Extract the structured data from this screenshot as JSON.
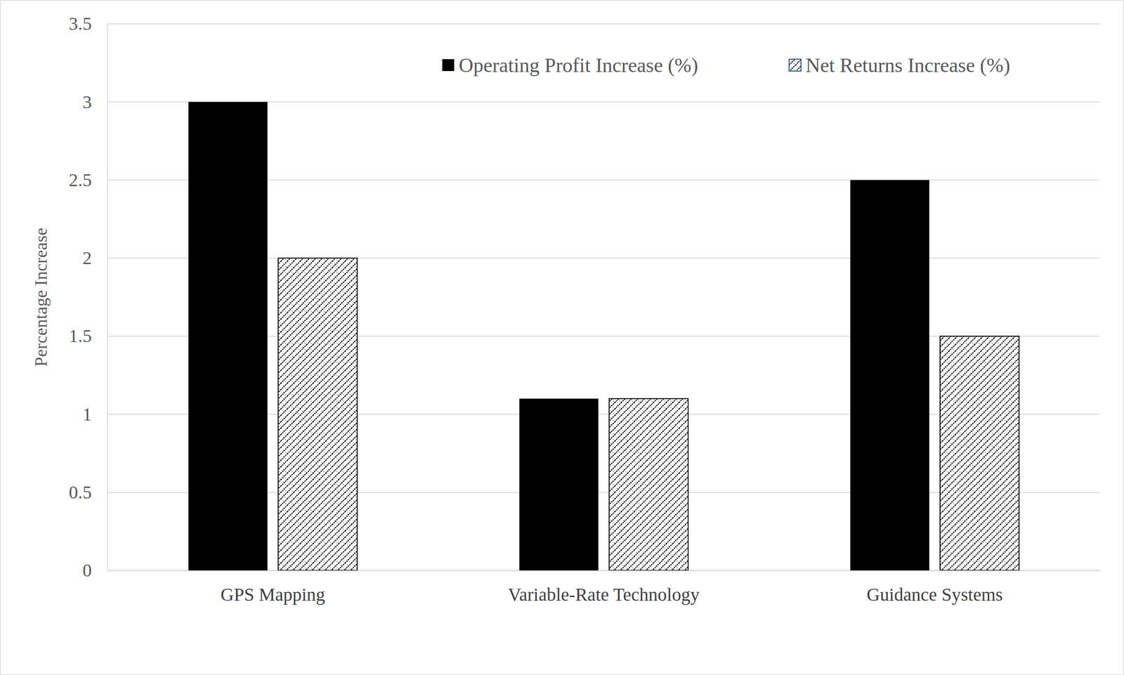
{
  "chart_data": {
    "type": "bar",
    "y_label": "Percentage Increase",
    "categories": [
      "GPS Mapping",
      "Variable-Rate Technology",
      "Guidance Systems"
    ],
    "series": [
      {
        "name": "Operating Profit Increase (%)",
        "color": "#000000",
        "values": [
          3,
          1.1,
          2.5
        ]
      },
      {
        "name": "Net Returns Increase (%)",
        "color": "#000000",
        "values": [
          2,
          1.1,
          1.5
        ]
      }
    ],
    "ylim": [
      0,
      3.5
    ],
    "yticks": [
      0,
      0.5,
      1,
      1.5,
      2,
      2.5,
      3,
      3.5
    ],
    "grid": true,
    "legend": "top"
  }
}
